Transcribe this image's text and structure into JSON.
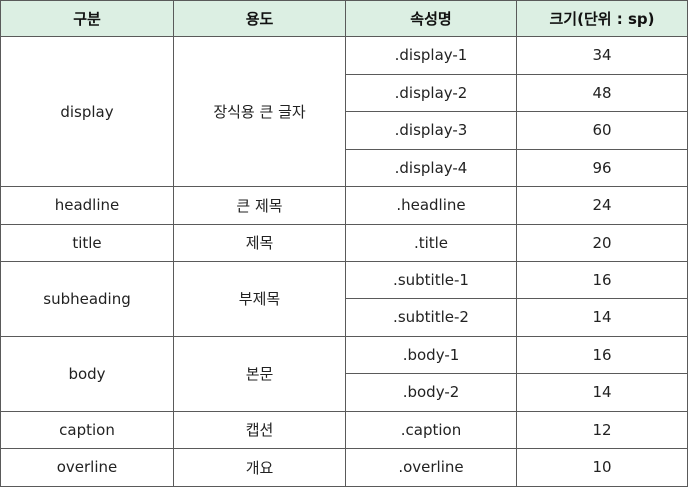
{
  "header": {
    "col1": "구분",
    "col2": "용도",
    "col3": "속성명",
    "col4": "크기(단위 : sp)"
  },
  "rows": {
    "display": {
      "category": "display",
      "usage": "장식용 큰 글자",
      "items": [
        {
          "attr": ".display-1",
          "size": "34"
        },
        {
          "attr": ".display-2",
          "size": "48"
        },
        {
          "attr": ".display-3",
          "size": "60"
        },
        {
          "attr": ".display-4",
          "size": "96"
        }
      ]
    },
    "headline": {
      "category": "headline",
      "usage": "큰 제목",
      "items": [
        {
          "attr": ".headline",
          "size": "24"
        }
      ]
    },
    "title": {
      "category": "title",
      "usage": "제목",
      "items": [
        {
          "attr": ".title",
          "size": "20"
        }
      ]
    },
    "subheading": {
      "category": "subheading",
      "usage": "부제목",
      "items": [
        {
          "attr": ".subtitle-1",
          "size": "16"
        },
        {
          "attr": ".subtitle-2",
          "size": "14"
        }
      ]
    },
    "body": {
      "category": "body",
      "usage": "본문",
      "items": [
        {
          "attr": ".body-1",
          "size": "16"
        },
        {
          "attr": ".body-2",
          "size": "14"
        }
      ]
    },
    "caption": {
      "category": "caption",
      "usage": "캡션",
      "items": [
        {
          "attr": ".caption",
          "size": "12"
        }
      ]
    },
    "overline": {
      "category": "overline",
      "usage": "개요",
      "items": [
        {
          "attr": ".overline",
          "size": "10"
        }
      ]
    }
  }
}
